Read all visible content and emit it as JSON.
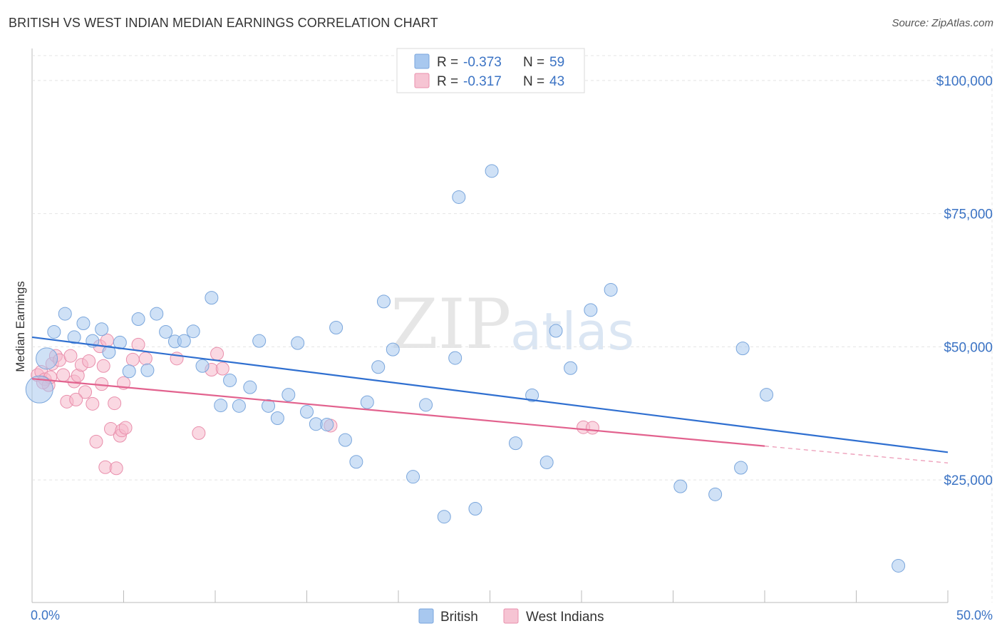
{
  "header": {
    "title": "BRITISH VS WEST INDIAN MEDIAN EARNINGS CORRELATION CHART",
    "source": "Source: ZipAtlas.com"
  },
  "colors": {
    "british": "#a8c8ef",
    "british_stroke": "#7aa6dc",
    "british_line": "#2f6fd0",
    "west_indians": "#f6b8cb",
    "west_indians_stroke": "#e98fac",
    "west_indians_line": "#e2628e",
    "tick": "#3b73c4"
  },
  "watermark": {
    "zip": "ZIP",
    "atlas": "atlas"
  },
  "legend": {
    "rows": [
      {
        "r_label": "R =",
        "r_value": "-0.373",
        "n_label": "N =",
        "n_value": "59"
      },
      {
        "r_label": "R =",
        "r_value": "-0.317",
        "n_label": "N =",
        "n_value": "43"
      }
    ]
  },
  "bottom_legend": [
    "British",
    "West Indians"
  ],
  "chart_data": {
    "type": "scatter",
    "title": "BRITISH VS WEST INDIAN MEDIAN EARNINGS CORRELATION CHART",
    "xlabel": "",
    "ylabel": "Median Earnings",
    "xlim": [
      0,
      50
    ],
    "ylim": [
      2000,
      106000
    ],
    "x_tick_labels": [
      "0.0%",
      "50.0%"
    ],
    "y_ticks": [
      25000,
      50000,
      75000,
      100000
    ],
    "y_tick_labels": [
      "$25,000",
      "$50,000",
      "$75,000",
      "$100,000"
    ],
    "grid": true,
    "legend_position": "top-center",
    "series": [
      {
        "name": "British",
        "r": -0.373,
        "n": 59,
        "trend": {
          "x0": 0,
          "y0": 51800,
          "x1": 50,
          "y1": 30200,
          "dashed_from": null
        },
        "points": [
          {
            "x": 0.4,
            "y": 42000,
            "big": 2
          },
          {
            "x": 0.8,
            "y": 47800,
            "big": 1
          },
          {
            "x": 1.2,
            "y": 52800
          },
          {
            "x": 1.8,
            "y": 56200
          },
          {
            "x": 2.3,
            "y": 51800
          },
          {
            "x": 2.8,
            "y": 54400
          },
          {
            "x": 3.3,
            "y": 51100
          },
          {
            "x": 3.8,
            "y": 53300
          },
          {
            "x": 4.2,
            "y": 49000
          },
          {
            "x": 4.8,
            "y": 50800
          },
          {
            "x": 5.3,
            "y": 45400
          },
          {
            "x": 5.8,
            "y": 55200
          },
          {
            "x": 6.3,
            "y": 45600
          },
          {
            "x": 6.8,
            "y": 56200
          },
          {
            "x": 7.3,
            "y": 52800
          },
          {
            "x": 7.8,
            "y": 51000
          },
          {
            "x": 8.3,
            "y": 51100
          },
          {
            "x": 8.8,
            "y": 52900
          },
          {
            "x": 9.3,
            "y": 46400
          },
          {
            "x": 9.8,
            "y": 59200
          },
          {
            "x": 10.3,
            "y": 39000
          },
          {
            "x": 10.8,
            "y": 43700
          },
          {
            "x": 11.3,
            "y": 38900
          },
          {
            "x": 11.9,
            "y": 42400
          },
          {
            "x": 12.4,
            "y": 51100
          },
          {
            "x": 12.9,
            "y": 38900
          },
          {
            "x": 13.4,
            "y": 36600
          },
          {
            "x": 14.0,
            "y": 41000
          },
          {
            "x": 14.5,
            "y": 50700
          },
          {
            "x": 15.0,
            "y": 37800
          },
          {
            "x": 15.5,
            "y": 35500
          },
          {
            "x": 16.1,
            "y": 35400
          },
          {
            "x": 16.6,
            "y": 53600
          },
          {
            "x": 17.1,
            "y": 32500
          },
          {
            "x": 17.7,
            "y": 28400
          },
          {
            "x": 18.3,
            "y": 39600
          },
          {
            "x": 18.9,
            "y": 46200
          },
          {
            "x": 19.2,
            "y": 58500
          },
          {
            "x": 19.7,
            "y": 49500
          },
          {
            "x": 20.8,
            "y": 25600
          },
          {
            "x": 21.5,
            "y": 39100
          },
          {
            "x": 22.5,
            "y": 18100
          },
          {
            "x": 23.1,
            "y": 47900
          },
          {
            "x": 23.3,
            "y": 78100
          },
          {
            "x": 24.2,
            "y": 19600
          },
          {
            "x": 25.1,
            "y": 83000
          },
          {
            "x": 26.4,
            "y": 31900
          },
          {
            "x": 27.3,
            "y": 40900
          },
          {
            "x": 28.1,
            "y": 28300
          },
          {
            "x": 28.6,
            "y": 53000
          },
          {
            "x": 29.4,
            "y": 46000
          },
          {
            "x": 30.5,
            "y": 56900
          },
          {
            "x": 31.6,
            "y": 60700
          },
          {
            "x": 35.4,
            "y": 23800
          },
          {
            "x": 37.3,
            "y": 22300
          },
          {
            "x": 38.7,
            "y": 27300
          },
          {
            "x": 38.8,
            "y": 49700
          },
          {
            "x": 40.1,
            "y": 41000
          },
          {
            "x": 47.3,
            "y": 8900
          }
        ]
      },
      {
        "name": "West Indians",
        "r": -0.317,
        "n": 43,
        "trend": {
          "x0": 0,
          "y0": 44000,
          "x1": 50,
          "y1": 28200,
          "dashed_from": 40
        },
        "points": [
          {
            "x": 0.3,
            "y": 44700
          },
          {
            "x": 0.5,
            "y": 45300
          },
          {
            "x": 0.7,
            "y": 43900
          },
          {
            "x": 0.9,
            "y": 42800
          },
          {
            "x": 1.1,
            "y": 46800
          },
          {
            "x": 1.3,
            "y": 48300
          },
          {
            "x": 1.5,
            "y": 47500
          },
          {
            "x": 1.7,
            "y": 44700
          },
          {
            "x": 1.9,
            "y": 39700
          },
          {
            "x": 2.1,
            "y": 48300
          },
          {
            "x": 2.3,
            "y": 43500
          },
          {
            "x": 2.5,
            "y": 44600
          },
          {
            "x": 2.7,
            "y": 46600
          },
          {
            "x": 2.9,
            "y": 41500
          },
          {
            "x": 3.1,
            "y": 47300
          },
          {
            "x": 3.3,
            "y": 39300
          },
          {
            "x": 3.5,
            "y": 32200
          },
          {
            "x": 3.7,
            "y": 50100
          },
          {
            "x": 3.8,
            "y": 43000
          },
          {
            "x": 3.9,
            "y": 46400
          },
          {
            "x": 4.0,
            "y": 27400
          },
          {
            "x": 4.1,
            "y": 51200
          },
          {
            "x": 4.3,
            "y": 34600
          },
          {
            "x": 4.5,
            "y": 39400
          },
          {
            "x": 4.6,
            "y": 27200
          },
          {
            "x": 4.8,
            "y": 33300
          },
          {
            "x": 4.9,
            "y": 34300
          },
          {
            "x": 5.0,
            "y": 43200
          },
          {
            "x": 5.1,
            "y": 34800
          },
          {
            "x": 5.5,
            "y": 47600
          },
          {
            "x": 5.8,
            "y": 50400
          },
          {
            "x": 6.2,
            "y": 47800
          },
          {
            "x": 7.9,
            "y": 47800
          },
          {
            "x": 9.1,
            "y": 33800
          },
          {
            "x": 9.8,
            "y": 45700
          },
          {
            "x": 10.1,
            "y": 48700
          },
          {
            "x": 10.4,
            "y": 45900
          },
          {
            "x": 16.3,
            "y": 35200
          },
          {
            "x": 30.1,
            "y": 34900
          },
          {
            "x": 30.6,
            "y": 34800
          },
          {
            "x": 1.0,
            "y": 44300
          },
          {
            "x": 2.4,
            "y": 40100
          },
          {
            "x": 0.6,
            "y": 43300
          }
        ]
      }
    ]
  }
}
